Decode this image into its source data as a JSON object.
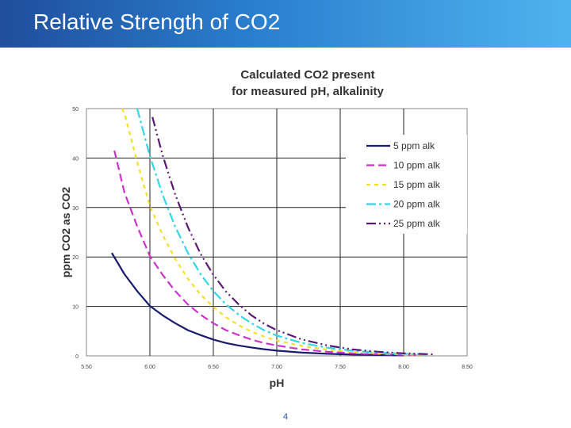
{
  "slide": {
    "title": "Relative Strength of CO2",
    "page_number": "4",
    "header_colors": [
      "#1f4e9c",
      "#4fb3ee"
    ]
  },
  "chart_data": {
    "type": "line",
    "title": [
      "Calculated CO2 present",
      "for measured pH, alkalinity"
    ],
    "xlabel": "pH",
    "ylabel": "ppm CO2 as CO2",
    "xlim": [
      5.5,
      8.5
    ],
    "ylim": [
      0,
      50
    ],
    "xticks": [
      "5.50",
      "6.00",
      "6.50",
      "7.00",
      "7.50",
      "8.00",
      "8.50"
    ],
    "yticks": [
      "0",
      "10",
      "20",
      "30",
      "40",
      "50"
    ],
    "grid": true,
    "legend_position": "top-right",
    "series": [
      {
        "name": "5 ppm alk",
        "color": "#1a1a6e",
        "dash": "solid",
        "points": [
          [
            5.7,
            20.8
          ],
          [
            5.8,
            16.5
          ],
          [
            5.9,
            13.1
          ],
          [
            6.0,
            10.1
          ],
          [
            6.1,
            8.2
          ],
          [
            6.2,
            6.6
          ],
          [
            6.3,
            5.2
          ],
          [
            6.4,
            4.2
          ],
          [
            6.5,
            3.3
          ],
          [
            6.6,
            2.6
          ],
          [
            6.7,
            2.1
          ],
          [
            6.8,
            1.7
          ],
          [
            6.9,
            1.35
          ],
          [
            7.0,
            1.05
          ],
          [
            7.2,
            0.66
          ],
          [
            7.4,
            0.42
          ],
          [
            7.6,
            0.26
          ],
          [
            7.8,
            0.17
          ],
          [
            8.0,
            0.1
          ]
        ]
      },
      {
        "name": "10 ppm alk",
        "color": "#cc33cc",
        "dash": "10,5",
        "points": [
          [
            5.72,
            41.5
          ],
          [
            5.8,
            33.0
          ],
          [
            5.9,
            26.2
          ],
          [
            6.0,
            20.2
          ],
          [
            6.1,
            16.4
          ],
          [
            6.2,
            13.1
          ],
          [
            6.3,
            10.4
          ],
          [
            6.4,
            8.3
          ],
          [
            6.5,
            6.6
          ],
          [
            6.6,
            5.2
          ],
          [
            6.7,
            4.2
          ],
          [
            6.8,
            3.3
          ],
          [
            6.9,
            2.6
          ],
          [
            7.0,
            2.1
          ],
          [
            7.2,
            1.3
          ],
          [
            7.4,
            0.83
          ],
          [
            7.6,
            0.52
          ],
          [
            7.8,
            0.33
          ],
          [
            8.0,
            0.21
          ],
          [
            8.1,
            0.17
          ]
        ]
      },
      {
        "name": "15 ppm alk",
        "color": "#f2e02a",
        "dash": "5,5",
        "points": [
          [
            5.78,
            50.0
          ],
          [
            5.8,
            49.0
          ],
          [
            5.9,
            39.2
          ],
          [
            6.0,
            30.3
          ],
          [
            6.1,
            24.5
          ],
          [
            6.2,
            19.6
          ],
          [
            6.3,
            15.6
          ],
          [
            6.4,
            12.4
          ],
          [
            6.5,
            9.9
          ],
          [
            6.6,
            7.8
          ],
          [
            6.7,
            6.2
          ],
          [
            6.8,
            4.9
          ],
          [
            6.9,
            3.9
          ],
          [
            7.0,
            3.1
          ],
          [
            7.2,
            2.0
          ],
          [
            7.4,
            1.25
          ],
          [
            7.6,
            0.78
          ],
          [
            7.8,
            0.5
          ],
          [
            8.0,
            0.31
          ],
          [
            8.15,
            0.22
          ]
        ]
      },
      {
        "name": "20 ppm alk",
        "color": "#33d6e6",
        "dash": "12,4,3,4",
        "points": [
          [
            5.9,
            50.0
          ],
          [
            6.0,
            40.4
          ],
          [
            6.1,
            32.6
          ],
          [
            6.2,
            26.1
          ],
          [
            6.3,
            20.8
          ],
          [
            6.4,
            16.5
          ],
          [
            6.5,
            13.1
          ],
          [
            6.6,
            10.4
          ],
          [
            6.7,
            8.3
          ],
          [
            6.8,
            6.6
          ],
          [
            6.9,
            5.2
          ],
          [
            7.0,
            4.1
          ],
          [
            7.2,
            2.6
          ],
          [
            7.4,
            1.65
          ],
          [
            7.6,
            1.04
          ],
          [
            7.8,
            0.66
          ],
          [
            8.0,
            0.42
          ],
          [
            8.2,
            0.26
          ]
        ]
      },
      {
        "name": "25 ppm alk",
        "color": "#5a1a78",
        "dash": "12,4,2,4,2,4",
        "points": [
          [
            6.02,
            48.3
          ],
          [
            6.1,
            40.6
          ],
          [
            6.2,
            32.6
          ],
          [
            6.3,
            26.0
          ],
          [
            6.4,
            20.6
          ],
          [
            6.5,
            16.4
          ],
          [
            6.6,
            13.0
          ],
          [
            6.7,
            10.4
          ],
          [
            6.8,
            8.2
          ],
          [
            6.9,
            6.5
          ],
          [
            7.0,
            5.2
          ],
          [
            7.2,
            3.3
          ],
          [
            7.4,
            2.1
          ],
          [
            7.6,
            1.3
          ],
          [
            7.8,
            0.83
          ],
          [
            8.0,
            0.52
          ],
          [
            8.25,
            0.3
          ]
        ]
      }
    ]
  }
}
